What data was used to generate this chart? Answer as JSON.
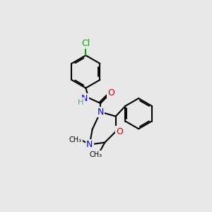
{
  "background_color": "#e8e8e8",
  "bond_color": "#000000",
  "n_color": "#0000ff",
  "o_color": "#cc0000",
  "cl_color": "#00aa00",
  "h_color": "#6699aa",
  "lw": 1.5,
  "lw_aromatic": 1.2
}
